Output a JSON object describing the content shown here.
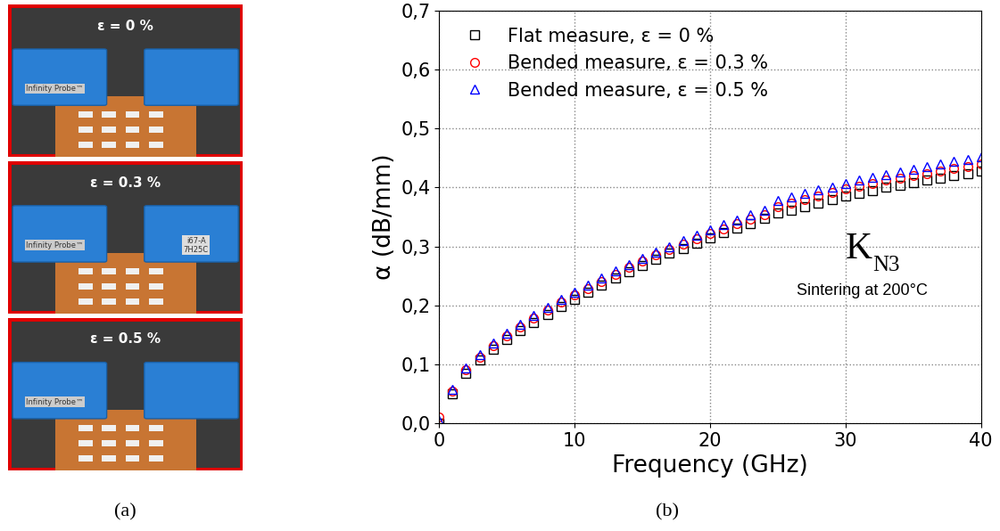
{
  "chart_data": {
    "type": "scatter",
    "x_label": "Frequency (GHz)",
    "y_label": "α (dB/mm)",
    "panel_label": "(b)",
    "annotations": {
      "main": "K",
      "subscript": "N3",
      "note": "Sintering at 200°C"
    },
    "x": [
      0,
      1,
      2,
      3,
      4,
      5,
      6,
      7,
      8,
      9,
      10,
      11,
      12,
      13,
      14,
      15,
      16,
      17,
      18,
      19,
      20,
      21,
      22,
      23,
      24,
      25,
      26,
      27,
      28,
      29,
      30,
      31,
      32,
      33,
      34,
      35,
      36,
      37,
      38,
      39,
      40
    ],
    "series": [
      {
        "name": "Flat measure, ε = 0 %",
        "color": "#000000",
        "marker": "square",
        "values": [
          0.0,
          0.05,
          0.085,
          0.107,
          0.126,
          0.142,
          0.157,
          0.171,
          0.185,
          0.198,
          0.21,
          0.222,
          0.234,
          0.246,
          0.257,
          0.268,
          0.278,
          0.288,
          0.297,
          0.306,
          0.315,
          0.323,
          0.331,
          0.339,
          0.347,
          0.356,
          0.362,
          0.368,
          0.374,
          0.379,
          0.385,
          0.39,
          0.395,
          0.4,
          0.404,
          0.408,
          0.412,
          0.416,
          0.42,
          0.424,
          0.428
        ]
      },
      {
        "name": "Bended measure, ε = 0.3 %",
        "color": "#ff0000",
        "marker": "circle",
        "values": [
          0.01,
          0.055,
          0.09,
          0.112,
          0.131,
          0.148,
          0.163,
          0.178,
          0.192,
          0.205,
          0.217,
          0.229,
          0.241,
          0.253,
          0.264,
          0.275,
          0.285,
          0.295,
          0.304,
          0.313,
          0.322,
          0.33,
          0.338,
          0.346,
          0.354,
          0.368,
          0.374,
          0.38,
          0.386,
          0.391,
          0.397,
          0.402,
          0.407,
          0.412,
          0.416,
          0.42,
          0.424,
          0.428,
          0.432,
          0.436,
          0.44
        ]
      },
      {
        "name": "Bended measure, ε = 0.5 %",
        "color": "#0000ff",
        "marker": "triangle",
        "values": [
          0.005,
          0.058,
          0.093,
          0.116,
          0.136,
          0.153,
          0.168,
          0.183,
          0.197,
          0.21,
          0.222,
          0.234,
          0.246,
          0.258,
          0.269,
          0.28,
          0.29,
          0.3,
          0.31,
          0.319,
          0.328,
          0.337,
          0.345,
          0.353,
          0.361,
          0.378,
          0.384,
          0.39,
          0.396,
          0.401,
          0.407,
          0.412,
          0.417,
          0.422,
          0.427,
          0.431,
          0.436,
          0.44,
          0.444,
          0.448,
          0.452
        ]
      }
    ],
    "xlim": [
      0,
      40
    ],
    "xticks": [
      0,
      10,
      20,
      30,
      40
    ],
    "ylim": [
      0.0,
      0.7
    ],
    "yticks": [
      {
        "value": 0.0,
        "label": "0,0"
      },
      {
        "value": 0.1,
        "label": "0,1"
      },
      {
        "value": 0.2,
        "label": "0,2"
      },
      {
        "value": 0.3,
        "label": "0,3"
      },
      {
        "value": 0.4,
        "label": "0,4"
      },
      {
        "value": 0.5,
        "label": "0,5"
      },
      {
        "value": 0.6,
        "label": "0,6"
      },
      {
        "value": 0.7,
        "label": "0,7"
      }
    ],
    "grid": true,
    "legend": "upper left"
  },
  "photos": {
    "panel_label": "(a)",
    "items": [
      {
        "strain_label": "ε = 0 %",
        "probe_left": "Infinity Probe™",
        "probe_right": []
      },
      {
        "strain_label": "ε = 0.3 %",
        "probe_left": "Infinity Probe™",
        "probe_right": [
          "i67-A",
          "7H25C"
        ]
      },
      {
        "strain_label": "ε = 0.5 %",
        "probe_left": "Infinity Probe™",
        "probe_right": []
      }
    ]
  }
}
